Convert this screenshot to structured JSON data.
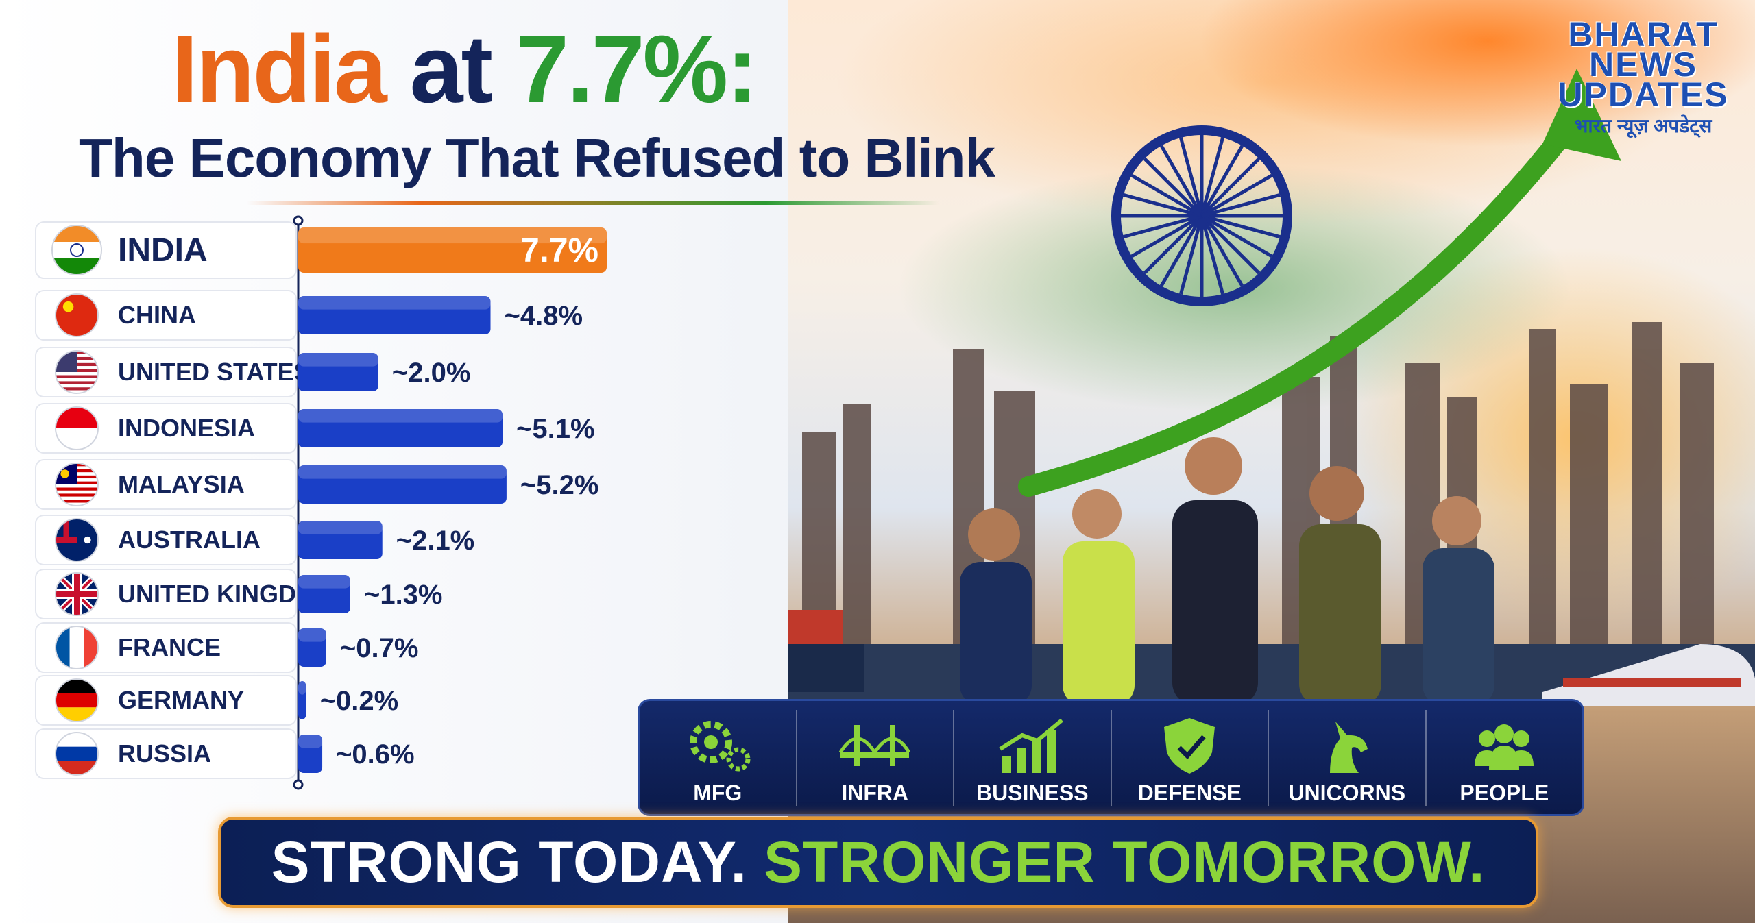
{
  "title": {
    "part1": "India",
    "part2": "at",
    "part3": "7.7%:",
    "subtitle": "The Economy That Refused to Blink"
  },
  "logo": {
    "line1": "BHARAT",
    "line2": "NEWS",
    "line3": "UPDATES",
    "line4": "भारत न्यूज़ अपडेट्स"
  },
  "colors": {
    "india_bar": "#f07a1a",
    "other_bar": "#1a3fc7",
    "navy": "#14245a",
    "green": "#2b9a32",
    "accent_green": "#8bd43a"
  },
  "chart_data": {
    "type": "bar",
    "orientation": "horizontal",
    "categories": [
      "INDIA",
      "CHINA",
      "UNITED STATES",
      "INDONESIA",
      "MALAYSIA",
      "AUSTRALIA",
      "UNITED KINGDOM",
      "FRANCE",
      "GERMANY",
      "RUSSIA"
    ],
    "values": [
      7.7,
      4.8,
      2.0,
      5.1,
      5.2,
      2.1,
      1.3,
      0.7,
      0.2,
      0.6
    ],
    "data_labels": [
      "7.7%",
      "~4.8%",
      "~2.0%",
      "~5.1%",
      "~5.2%",
      "~2.1%",
      "~1.3%",
      "~0.7%",
      "~0.2%",
      "~0.6%"
    ],
    "flags": [
      "india-flag-icon",
      "china-flag-icon",
      "usa-flag-icon",
      "indonesia-flag-icon",
      "malaysia-flag-icon",
      "australia-flag-icon",
      "uk-flag-icon",
      "france-flag-icon",
      "germany-flag-icon",
      "russia-flag-icon"
    ],
    "highlight": "INDIA",
    "title": "",
    "xlabel": "",
    "ylabel": "",
    "xlim": [
      0,
      7.7
    ],
    "grid": false
  },
  "sectors": [
    {
      "label": "MFG",
      "icon": "gear-factory-icon"
    },
    {
      "label": "INFRA",
      "icon": "bridge-icon"
    },
    {
      "label": "BUSINESS",
      "icon": "growth-chart-icon"
    },
    {
      "label": "DEFENSE",
      "icon": "shield-icon"
    },
    {
      "label": "UNICORNS",
      "icon": "unicorn-icon"
    },
    {
      "label": "PEOPLE",
      "icon": "people-icon"
    }
  ],
  "banner": {
    "part1": "STRONG TODAY.",
    "part2": "STRONGER TOMORROW."
  }
}
